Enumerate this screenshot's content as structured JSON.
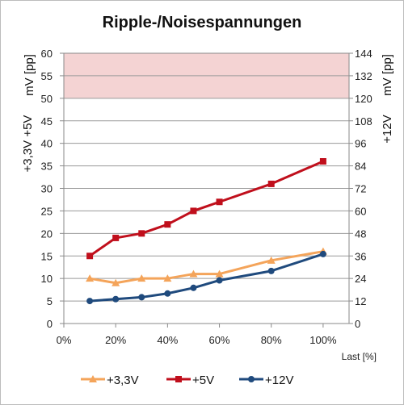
{
  "chart_data": {
    "type": "line",
    "title": "Ripple-/Noisespannungen",
    "xlabel": "Last [%]",
    "ylabel_left_top": "mV [pp]",
    "ylabel_left_bottom": "+3,3V +5V",
    "ylabel_right_top": "mV [pp]",
    "ylabel_right_bottom": "+12V",
    "x_ticks": [
      "0%",
      "20%",
      "40%",
      "60%",
      "80%",
      "100%"
    ],
    "xlim": [
      0,
      110
    ],
    "y_left_ticks": [
      "0",
      "5",
      "10",
      "15",
      "20",
      "25",
      "30",
      "35",
      "40",
      "45",
      "50",
      "55",
      "60"
    ],
    "ylim_left": [
      0,
      60
    ],
    "y_right_ticks": [
      "0",
      "12",
      "24",
      "36",
      "48",
      "60",
      "72",
      "84",
      "96",
      "108",
      "120",
      "132",
      "144"
    ],
    "ylim_right": [
      0,
      144
    ],
    "limit_band": {
      "from": 50,
      "to": 60,
      "axis": "left",
      "color": "#f4d3d3"
    },
    "grid": true,
    "legend_position": "bottom",
    "series": [
      {
        "name": "+3,3V",
        "axis": "left",
        "color": "#f4a45a",
        "marker": "triangle",
        "x": [
          10,
          20,
          30,
          40,
          50,
          60,
          80,
          100
        ],
        "y": [
          10,
          9,
          10,
          10,
          11,
          11,
          14,
          16
        ]
      },
      {
        "name": "+5V",
        "axis": "left",
        "color": "#c00f1c",
        "marker": "square",
        "x": [
          10,
          20,
          30,
          40,
          50,
          60,
          80,
          100
        ],
        "y": [
          15,
          19,
          20,
          22,
          25,
          27,
          31,
          36
        ]
      },
      {
        "name": "+12V",
        "axis": "right",
        "color": "#1f4a7d",
        "marker": "circle",
        "x": [
          10,
          20,
          30,
          40,
          50,
          60,
          80,
          100
        ],
        "y": [
          12,
          13,
          14,
          16,
          19,
          23,
          28,
          37
        ]
      }
    ]
  }
}
